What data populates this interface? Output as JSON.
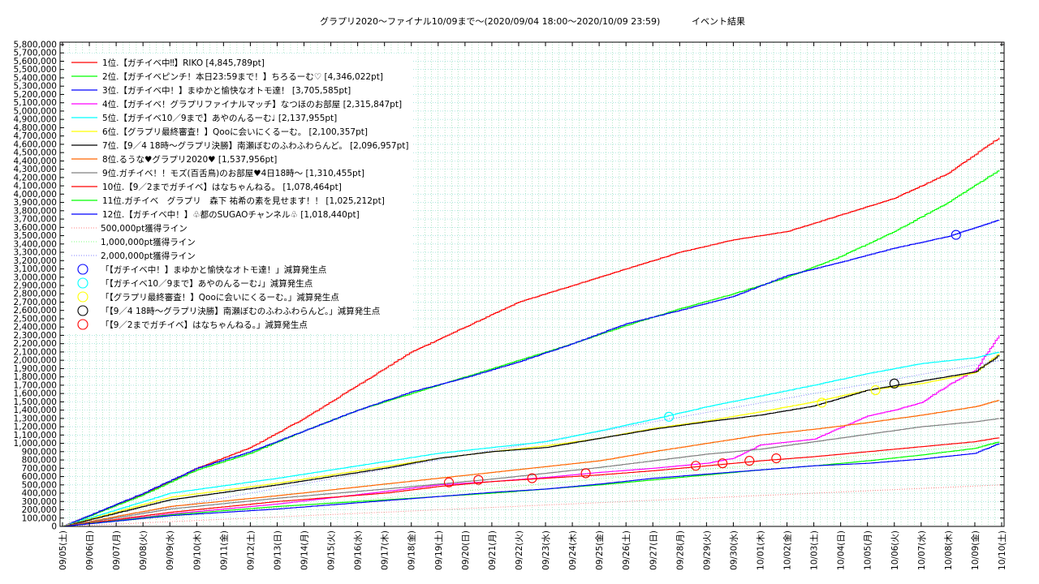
{
  "chart_data": {
    "type": "line",
    "title": "グラプリ2020〜ファイナル10/09まで〜(2020/09/04 18:00〜2020/10/09 23:59)",
    "subtitle": "イベント結果",
    "xlabel": "",
    "ylabel": "",
    "grid": true,
    "legend_position": "top-left",
    "x_categories": [
      "09/05(土)",
      "09/06(日)",
      "09/07(月)",
      "09/08(火)",
      "09/09(水)",
      "09/10(木)",
      "09/11(金)",
      "09/12(土)",
      "09/13(日)",
      "09/14(月)",
      "09/15(火)",
      "09/16(水)",
      "09/17(木)",
      "09/18(金)",
      "09/19(土)",
      "09/20(日)",
      "09/21(月)",
      "09/22(火)",
      "09/23(水)",
      "09/24(木)",
      "09/25(金)",
      "09/26(土)",
      "09/27(日)",
      "09/28(月)",
      "09/29(火)",
      "09/30(水)",
      "10/01(木)",
      "10/02(金)",
      "10/03(土)",
      "10/04(日)",
      "10/05(月)",
      "10/06(火)",
      "10/07(水)",
      "10/08(木)",
      "10/09(金)",
      "10/10(土)"
    ],
    "ylim": [
      0,
      5800000
    ],
    "y_tick_step": 100000,
    "y_tick_labels": [
      "0",
      "100,000",
      "200,000",
      "300,000",
      "400,000",
      "500,000",
      "600,000",
      "700,000",
      "800,000",
      "900,000",
      "1,000,000",
      "1,100,000",
      "1,200,000",
      "1,300,000",
      "1,400,000",
      "1,500,000",
      "1,600,000",
      "1,700,000",
      "1,800,000",
      "1,900,000",
      "2,000,000",
      "2,100,000",
      "2,200,000",
      "2,300,000",
      "2,400,000",
      "2,500,000",
      "2,600,000",
      "2,700,000",
      "2,800,000",
      "2,900,000",
      "3,000,000",
      "3,100,000",
      "3,200,000",
      "3,300,000",
      "3,400,000",
      "3,500,000",
      "3,600,000",
      "3,700,000",
      "3,800,000",
      "3,900,000",
      "4,000,000",
      "4,100,000",
      "4,200,000",
      "4,300,000",
      "4,400,000",
      "4,500,000",
      "4,600,000",
      "4,700,000",
      "4,800,000",
      "4,900,000",
      "5,000,000",
      "5,100,000",
      "5,200,000",
      "5,300,000",
      "5,400,000",
      "5,500,000",
      "5,600,000",
      "5,700,000",
      "5,800,000"
    ],
    "series": [
      {
        "name": "1位.【ガチイベ中‼】RIKO [4,845,789pt]",
        "color": "#ff0000",
        "x": [
          0,
          3,
          5,
          7,
          9,
          11,
          13,
          15,
          17,
          19,
          21,
          23,
          25,
          27,
          29,
          31,
          33,
          34.9
        ],
        "y": [
          0,
          390000,
          700000,
          950000,
          1300000,
          1700000,
          2100000,
          2400000,
          2700000,
          2900000,
          3100000,
          3300000,
          3450000,
          3550000,
          3750000,
          3950000,
          4250000,
          4680000
        ]
      },
      {
        "name": "2位.【ガチイベピンチ！本日23:59まで！】ちろるーむ♡ [4,346,022pt]",
        "color": "#00ff00",
        "x": [
          0,
          3,
          5,
          7,
          9,
          11,
          13,
          15,
          17,
          19,
          21,
          23,
          25,
          27,
          29,
          31,
          33,
          34.9
        ],
        "y": [
          0,
          380000,
          680000,
          880000,
          1150000,
          1400000,
          1600000,
          1800000,
          2000000,
          2200000,
          2420000,
          2620000,
          2800000,
          3000000,
          3250000,
          3550000,
          3900000,
          4290000
        ]
      },
      {
        "name": "3位.【ガチイベ中！】まゆかと愉快なオトモ達！ [3,705,585pt]",
        "color": "#0000ff",
        "x": [
          0,
          3,
          5,
          7,
          9,
          11,
          13,
          15,
          17,
          19,
          21,
          23,
          25,
          27,
          29,
          31,
          33,
          34.9
        ],
        "y": [
          0,
          400000,
          700000,
          900000,
          1150000,
          1400000,
          1620000,
          1790000,
          1980000,
          2200000,
          2440000,
          2600000,
          2770000,
          3020000,
          3180000,
          3350000,
          3490000,
          3690000
        ]
      },
      {
        "name": "4位.【ガチイベ！グラプリファイナルマッチ】なつほのお部屋 [2,315,847pt]",
        "color": "#ff00ff",
        "x": [
          0,
          4,
          8,
          12,
          14,
          16,
          18,
          20,
          22,
          24,
          25,
          26,
          28,
          29,
          30,
          31,
          32,
          33,
          34,
          34.9
        ],
        "y": [
          0,
          150000,
          270000,
          420000,
          500000,
          540000,
          590000,
          650000,
          700000,
          760000,
          820000,
          980000,
          1050000,
          1190000,
          1330000,
          1400000,
          1490000,
          1700000,
          1880000,
          2300000
        ]
      },
      {
        "name": "5位.【ガチイベ10／9まで】あやのんるーむ♩ [2,137,955pt]",
        "color": "#00ffff",
        "x": [
          0,
          4,
          8,
          12,
          14,
          16,
          18,
          20,
          22,
          24,
          26,
          28,
          30,
          32,
          34,
          34.9
        ],
        "y": [
          0,
          400000,
          580000,
          780000,
          880000,
          950000,
          1020000,
          1150000,
          1290000,
          1440000,
          1570000,
          1700000,
          1840000,
          1960000,
          2030000,
          2100000
        ]
      },
      {
        "name": "6位.【グラプリ最終審査！】Qooに会いにくるーむ。 [2,100,357pt]",
        "color": "#ffff00",
        "x": [
          0,
          4,
          8,
          12,
          14,
          16,
          18,
          20,
          22,
          24,
          26,
          28,
          30,
          32,
          34,
          34.9
        ],
        "y": [
          0,
          350000,
          520000,
          720000,
          820000,
          900000,
          970000,
          1060000,
          1180000,
          1270000,
          1380000,
          1500000,
          1640000,
          1720000,
          1850000,
          2080000
        ]
      },
      {
        "name": "7位.【9／4 18時〜グラプリ決勝】南瀬ぼむのふわふわらんど。 [2,096,957pt]",
        "color": "#000000",
        "x": [
          0,
          4,
          8,
          12,
          14,
          16,
          18,
          20,
          22,
          24,
          26,
          28,
          30,
          32,
          34,
          34.9
        ],
        "y": [
          0,
          320000,
          500000,
          700000,
          820000,
          900000,
          950000,
          1060000,
          1170000,
          1260000,
          1340000,
          1450000,
          1640000,
          1750000,
          1860000,
          2060000
        ]
      },
      {
        "name": "8位.るうな♥グラプリ2020♥ [1,537,956pt]",
        "color": "#ff6600",
        "x": [
          0,
          4,
          8,
          12,
          14,
          16,
          18,
          20,
          22,
          24,
          26,
          28,
          30,
          32,
          34,
          34.9
        ],
        "y": [
          0,
          240000,
          370000,
          510000,
          580000,
          650000,
          720000,
          790000,
          900000,
          1000000,
          1100000,
          1170000,
          1250000,
          1340000,
          1440000,
          1520000
        ]
      },
      {
        "name": "9位.ガチイベ！！モズ(百舌鳥)のお部屋♥4日18時〜 [1,310,455pt]",
        "color": "#808080",
        "x": [
          0,
          4,
          8,
          12,
          14,
          16,
          18,
          20,
          22,
          24,
          26,
          28,
          30,
          32,
          34,
          34.9
        ],
        "y": [
          0,
          210000,
          340000,
          450000,
          510000,
          570000,
          640000,
          710000,
          790000,
          870000,
          930000,
          1020000,
          1110000,
          1200000,
          1260000,
          1300000
        ]
      },
      {
        "name": "10位.【9／2までガチイベ】はなちゃんねる。 [1,078,464pt]",
        "color": "#ff0000",
        "x": [
          0,
          4,
          8,
          12,
          14,
          16,
          18,
          20,
          22,
          24,
          26,
          28,
          30,
          32,
          34,
          34.9
        ],
        "y": [
          0,
          170000,
          300000,
          400000,
          480000,
          540000,
          580000,
          620000,
          670000,
          730000,
          790000,
          840000,
          900000,
          960000,
          1020000,
          1070000
        ]
      },
      {
        "name": "11位.ガチイベ　グラプリ　森下 祐希の素を見せます！！ [1,025,212pt]",
        "color": "#00ff00",
        "x": [
          0,
          4,
          8,
          12,
          14,
          16,
          18,
          20,
          22,
          24,
          26,
          28,
          30,
          32,
          34,
          34.9
        ],
        "y": [
          0,
          140000,
          240000,
          320000,
          360000,
          400000,
          450000,
          500000,
          560000,
          620000,
          680000,
          730000,
          790000,
          860000,
          940000,
          1020000
        ]
      },
      {
        "name": "12位.【ガチイベ中！】♧都のSUGAOチャンネル♧ [1,018,440pt]",
        "color": "#0000ff",
        "x": [
          0,
          4,
          8,
          12,
          14,
          16,
          18,
          20,
          22,
          24,
          26,
          28,
          30,
          32,
          34,
          34.9
        ],
        "y": [
          0,
          130000,
          210000,
          310000,
          360000,
          410000,
          450000,
          510000,
          580000,
          630000,
          680000,
          730000,
          760000,
          810000,
          880000,
          1000000
        ]
      }
    ],
    "reference_lines": [
      {
        "name": "500,000pt獲得ライン",
        "value": 500000,
        "color": "#ff8080"
      },
      {
        "name": "1,000,000pt獲得ライン",
        "value": 1000000,
        "color": "#80ff80"
      },
      {
        "name": "2,000,000pt獲得ライン",
        "value": 2000000,
        "color": "#8080ff"
      }
    ],
    "penalty_markers": [
      {
        "name": "「【ガチイベ中！】まゆかと愉快なオトモ達！」減算発生点",
        "color": "#0000ff",
        "points": [
          {
            "x": 33.3,
            "y": 3510000
          }
        ]
      },
      {
        "name": "「【ガチイベ10／9まで】あやのんるーむ♩」減算発生点",
        "color": "#00ffff",
        "points": [
          {
            "x": 22.6,
            "y": 1320000
          }
        ]
      },
      {
        "name": "「【グラプリ最終審査！】Qooに会いにくるーむ。」減算発生点",
        "color": "#ffff00",
        "points": [
          {
            "x": 28.3,
            "y": 1490000
          },
          {
            "x": 30.3,
            "y": 1640000
          }
        ]
      },
      {
        "name": "「【9／4 18時〜グラプリ決勝】南瀬ぼむのふわふわらんど。」減算発生点",
        "color": "#000000",
        "points": [
          {
            "x": 31.0,
            "y": 1720000
          }
        ]
      },
      {
        "name": "「【9／2までガチイベ】はなちゃんねる。」減算発生点",
        "color": "#ff0000",
        "points": [
          {
            "x": 14.4,
            "y": 530000
          },
          {
            "x": 15.5,
            "y": 560000
          },
          {
            "x": 17.5,
            "y": 580000
          },
          {
            "x": 19.5,
            "y": 640000
          },
          {
            "x": 23.6,
            "y": 730000
          },
          {
            "x": 24.6,
            "y": 760000
          },
          {
            "x": 25.6,
            "y": 790000
          },
          {
            "x": 26.6,
            "y": 820000
          }
        ]
      }
    ]
  }
}
